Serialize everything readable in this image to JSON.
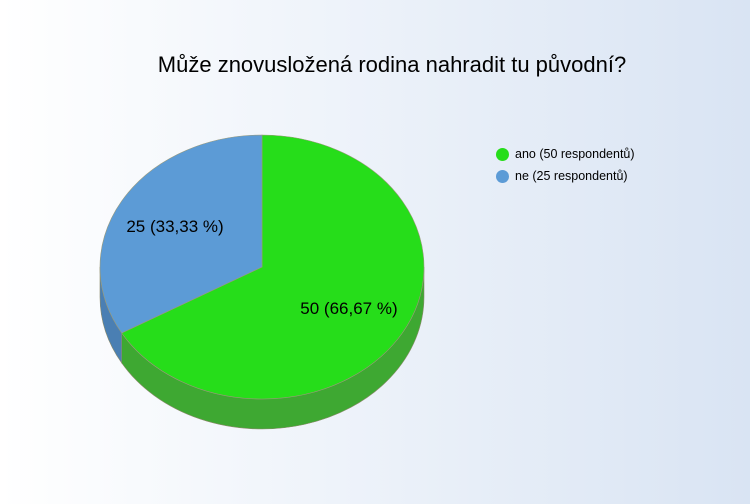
{
  "chart_data": {
    "type": "pie",
    "title": "Může znovusložená rodina nahradit tu původní?",
    "slices": [
      {
        "label": "ano (50 respondentů)",
        "value": 50,
        "data_label": "50 (66,67 %)",
        "color": "#26dd1a",
        "side_color": "#3ea832"
      },
      {
        "label": "ne (25 respondentů)",
        "value": 25,
        "data_label": "25 (33,33 %)",
        "color": "#5c9bd6",
        "side_color": "#4a7fb3"
      }
    ],
    "legend_position": "top-right",
    "style": "3d"
  }
}
